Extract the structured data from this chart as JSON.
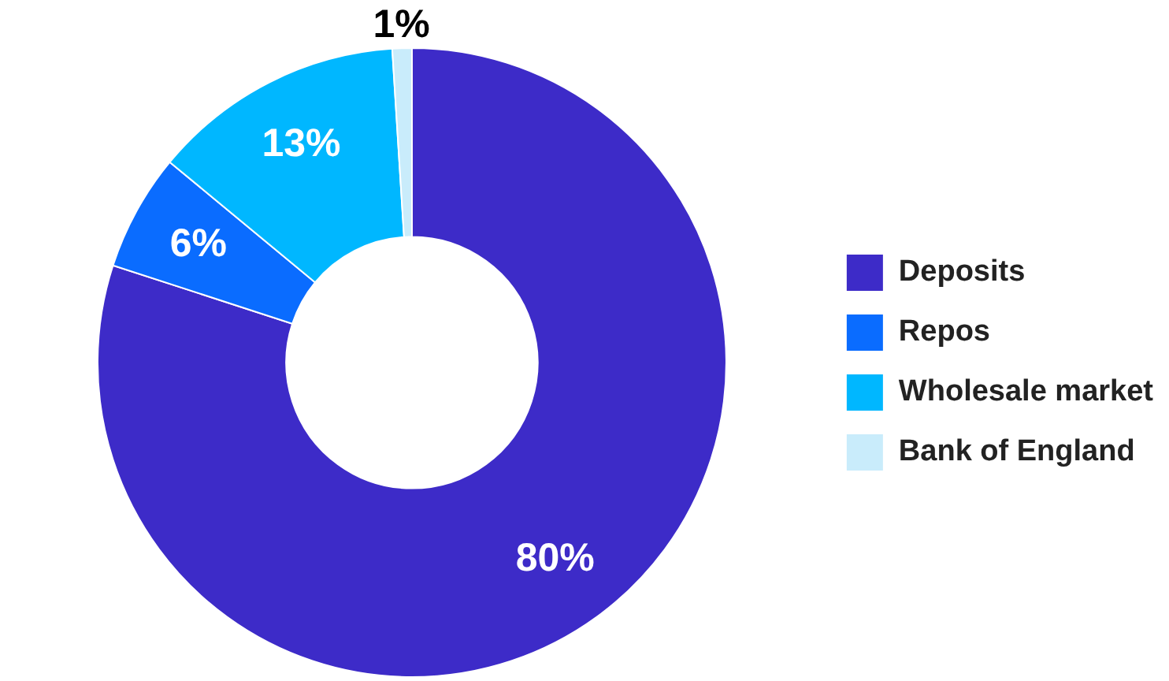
{
  "chart_data": {
    "type": "donut",
    "categories": [
      "Deposits",
      "Repos",
      "Wholesale market",
      "Bank of England"
    ],
    "values": [
      80,
      6,
      13,
      1
    ],
    "colors": [
      "#3d2bc8",
      "#0a6cff",
      "#00b7ff",
      "#c9ecfb"
    ],
    "value_labels": [
      "80%",
      "6%",
      "13%",
      "1%"
    ],
    "legend": "right"
  }
}
